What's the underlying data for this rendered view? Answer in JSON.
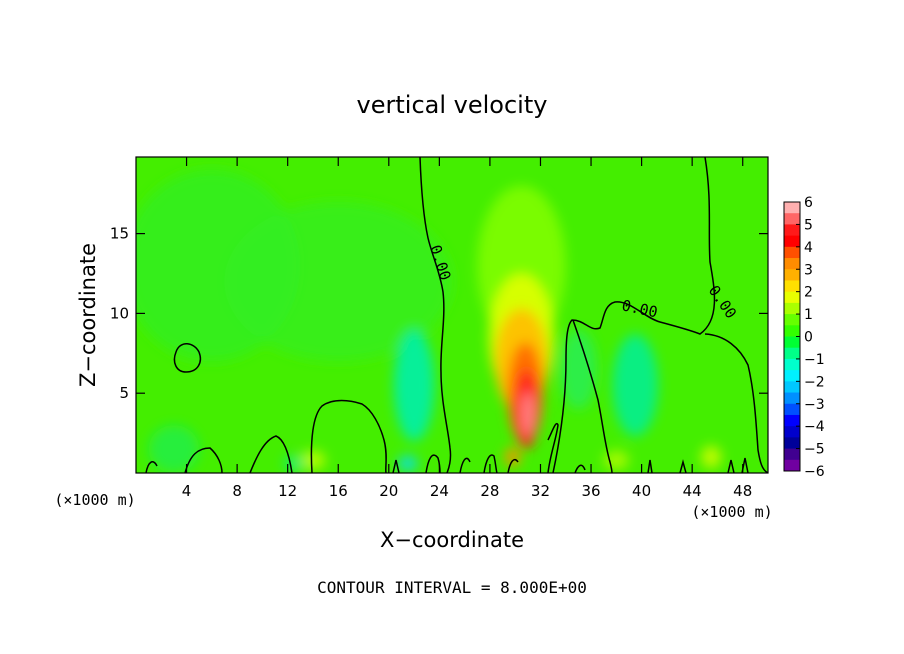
{
  "chart_data": {
    "type": "heatmap",
    "title": "vertical velocity",
    "xlabel": "X−coordinate",
    "ylabel": "Z−coordinate",
    "x_unit_left": "(×1000 m)",
    "x_unit_right": "(×1000 m)",
    "xlim": [
      0,
      50
    ],
    "ylim": [
      0,
      19.8
    ],
    "x_ticks": [
      4,
      8,
      12,
      16,
      20,
      24,
      28,
      32,
      36,
      40,
      44,
      48
    ],
    "x_tick_labels": [
      "4",
      "8",
      "12",
      "16",
      "20",
      "24",
      "28",
      "32",
      "36",
      "40",
      "44",
      "48"
    ],
    "y_ticks": [
      5,
      10,
      15
    ],
    "y_tick_labels": [
      "5",
      "10",
      "15"
    ],
    "footer": "CONTOUR INTERVAL = 8.000E+00",
    "colorbar": {
      "range": [
        -6,
        6
      ],
      "labels": [
        "6",
        "5",
        "4",
        "3",
        "2",
        "1",
        "0",
        "−1",
        "−2",
        "−3",
        "−4",
        "−5",
        "−6"
      ],
      "colors": [
        "#ffb0b0",
        "#ff6666",
        "#ff1a1a",
        "#ff0000",
        "#ff5000",
        "#ff8c00",
        "#ffb000",
        "#ffe000",
        "#e8ff00",
        "#aaff00",
        "#66ff00",
        "#33ff00",
        "#00ff33",
        "#00ff88",
        "#00ffcc",
        "#00f0ff",
        "#00c8ff",
        "#0090ff",
        "#0050ff",
        "#0000ff",
        "#0000cc",
        "#000099",
        "#400090",
        "#7000a0"
      ]
    },
    "contour_label": "0.00",
    "features": [
      {
        "kind": "updraft",
        "x": 30.8,
        "z": 4.0,
        "w": 5.6
      },
      {
        "kind": "updraft",
        "x": 30.5,
        "z": 7.5,
        "w": 2.5
      },
      {
        "kind": "updraft",
        "x": 30.0,
        "z": 12.0,
        "w": 0.9
      },
      {
        "kind": "downdraft",
        "x": 22.0,
        "z": 5.5,
        "w": -2.0
      },
      {
        "kind": "downdraft",
        "x": 39.5,
        "z": 5.5,
        "w": -1.5
      },
      {
        "kind": "downdraft",
        "x": 6.0,
        "z": 14.0,
        "w": -0.5
      }
    ]
  }
}
